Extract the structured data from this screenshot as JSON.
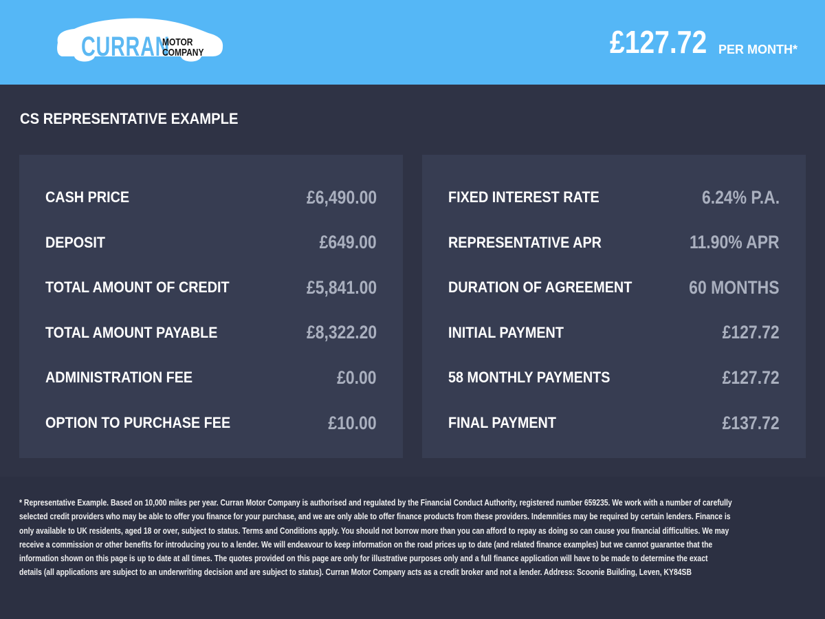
{
  "header": {
    "logo_text": "CURRAN MOTOR COMPANY",
    "logo_main": "CURRAN",
    "logo_sub1": "MOTOR",
    "logo_sub2": "COMPANY",
    "price": "£127.72",
    "per_month": "PER MONTH*",
    "bg_color": "#55b7f6"
  },
  "title": "CS REPRESENTATIVE EXAMPLE",
  "left": [
    {
      "label": "CASH PRICE",
      "value": "£6,490.00"
    },
    {
      "label": "DEPOSIT",
      "value": "£649.00"
    },
    {
      "label": "TOTAL AMOUNT OF CREDIT",
      "value": "£5,841.00"
    },
    {
      "label": "TOTAL AMOUNT PAYABLE",
      "value": "£8,322.20"
    },
    {
      "label": "ADMINISTRATION FEE",
      "value": "£0.00"
    },
    {
      "label": "OPTION TO PURCHASE FEE",
      "value": "£10.00"
    }
  ],
  "right": [
    {
      "label": "FIXED INTEREST RATE",
      "value": "6.24% P.A."
    },
    {
      "label": "REPRESENTATIVE APR",
      "value": "11.90% APR"
    },
    {
      "label": "DURATION OF AGREEMENT",
      "value": "60 MONTHS"
    },
    {
      "label": "INITIAL PAYMENT",
      "value": "£127.72"
    },
    {
      "label": "58 MONTHLY PAYMENTS",
      "value": "£127.72"
    },
    {
      "label": "FINAL PAYMENT",
      "value": "£137.72"
    }
  ],
  "footnote": [
    "* Representative Example. Based on 10,000 miles per year. Curran Motor Company is authorised and regulated by the Financial Conduct Authority, registered number 659235. We work with a number of carefully",
    "selected credit providers who may be able to offer you finance for your purchase, and we are only able to offer finance products from these providers. Indemnities may be required by certain lenders. Finance is",
    "only available to UK residents, aged 18 or over, subject to status. Terms and Conditions apply. You should not borrow more than you can afford to repay as doing so can cause you financial difficulties. We may",
    "receive a commission or other benefits for introducing you to a lender. We will endeavour to keep information on the road prices up to date (and related finance examples) but we cannot guarantee that the",
    "information shown on this page is up to date at all times. The quotes provided on this page are only for illustrative purposes only and a full finance application will have to be made to determine the exact",
    "details (all applications are subject to an underwriting decision and are subject to status). Curran Motor Company acts as a credit broker and not a lender. Address: Scoonie Building, Leven, KY84SB"
  ]
}
